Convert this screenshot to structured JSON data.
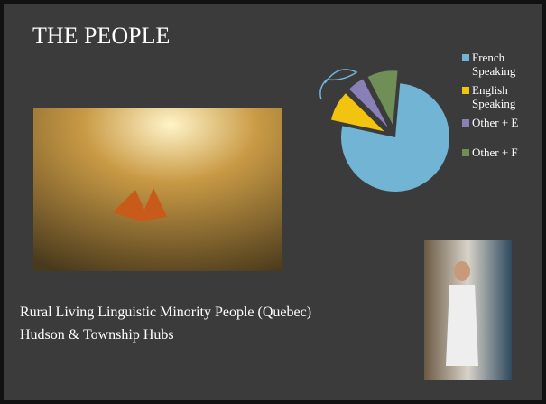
{
  "title": "THE PEOPLE",
  "body_lines": [
    "Rural Living Linguistic Minority People (Quebec)",
    "Hudson & Township Hubs"
  ],
  "chart_data": {
    "type": "pie",
    "categories": [
      "French Speaking",
      "English Speaking",
      "Other + E",
      "Other + F"
    ],
    "values": [
      77,
      9,
      5,
      9
    ],
    "colors": [
      "#72b4d4",
      "#f2c40f",
      "#8a80b8",
      "#6f8f57"
    ],
    "legend": "right"
  }
}
